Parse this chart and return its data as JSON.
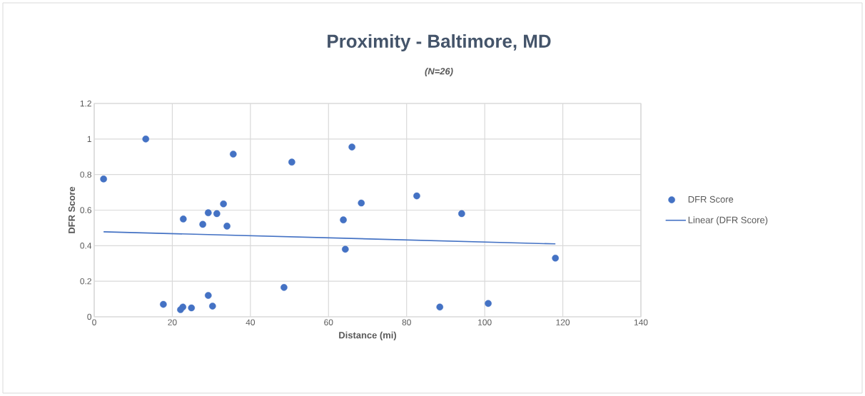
{
  "chart_data": {
    "type": "scatter",
    "title": "Proximity - Baltimore, MD",
    "subtitle": "(N=26)",
    "xlabel": "Distance (mi)",
    "ylabel": "DFR Score",
    "xlim": [
      0,
      140
    ],
    "xticks": [
      0,
      20,
      40,
      60,
      80,
      100,
      120,
      140
    ],
    "ylim": [
      0,
      1.2
    ],
    "yticks": [
      0,
      0.2,
      0.4,
      0.6,
      0.8,
      1,
      1.2
    ],
    "grid": true,
    "legend": "right",
    "series": [
      {
        "name": "DFR Score",
        "marker": "circle",
        "color": "#4472c4",
        "x": [
          2.4,
          13.2,
          17.7,
          22.8,
          22.7,
          22.1,
          24.9,
          27.8,
          29.2,
          29.2,
          30.3,
          31.4,
          33.1,
          34.0,
          35.6,
          48.6,
          50.6,
          63.8,
          64.3,
          66.0,
          68.4,
          82.6,
          88.5,
          94.1,
          100.9,
          118.1
        ],
        "values": [
          0.775,
          1.0,
          0.07,
          0.55,
          0.055,
          0.04,
          0.05,
          0.52,
          0.585,
          0.12,
          0.06,
          0.58,
          0.635,
          0.51,
          0.915,
          0.165,
          0.87,
          0.545,
          0.38,
          0.955,
          0.64,
          0.68,
          0.055,
          0.58,
          0.075,
          0.33
        ]
      },
      {
        "name": "Linear (DFR Score)",
        "type": "line",
        "line_style": "solid",
        "color": "#4472c4",
        "x": [
          2.4,
          118.1
        ],
        "values": [
          0.478,
          0.41
        ]
      }
    ]
  }
}
